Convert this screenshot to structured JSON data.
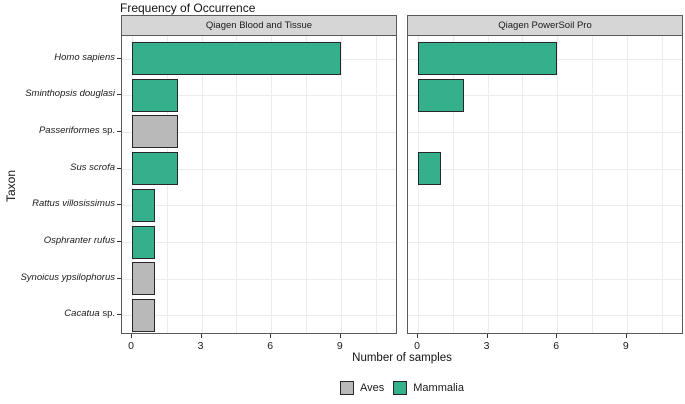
{
  "title": "Frequency of Occurrence",
  "x_axis_title": "Number of samples",
  "y_axis_title": "Taxon",
  "colors": {
    "series": {
      "Aves": "#b9b9b9",
      "Mammalia": "#34b18c"
    },
    "bar_border": "#272727",
    "strip_background": "#d6d6d6",
    "panel_border": "#595959",
    "grid": "#ececec"
  },
  "legend": [
    {
      "label": "Aves"
    },
    {
      "label": "Mammalia"
    }
  ],
  "chart_data": {
    "type": "bar",
    "orientation": "horizontal",
    "title": "Frequency of Occurrence",
    "xlabel": "Number of samples",
    "ylabel": "Taxon",
    "xlim": [
      0,
      11.5
    ],
    "x_ticks": [
      0,
      3,
      6,
      9
    ],
    "grid": true,
    "legend_position": "bottom",
    "categories": [
      {
        "name": "Homo sapiens",
        "suffix": "",
        "group": "Mammalia"
      },
      {
        "name": "Sminthopsis douglasi",
        "suffix": "",
        "group": "Mammalia"
      },
      {
        "name": "Passeriformes",
        "suffix": " sp.",
        "group": "Aves"
      },
      {
        "name": "Sus scrofa",
        "suffix": "",
        "group": "Mammalia"
      },
      {
        "name": "Rattus villosissimus",
        "suffix": "",
        "group": "Mammalia"
      },
      {
        "name": "Osphranter rufus",
        "suffix": "",
        "group": "Mammalia"
      },
      {
        "name": "Synoicus ypsilophorus",
        "suffix": "",
        "group": "Aves"
      },
      {
        "name": "Cacatua",
        "suffix": " sp.",
        "group": "Aves"
      }
    ],
    "facets": [
      {
        "label": "Qiagen Blood and Tissue",
        "values": [
          9,
          2,
          2,
          2,
          1,
          1,
          1,
          1
        ]
      },
      {
        "label": "Qiagen PowerSoil Pro",
        "values": [
          6,
          2,
          0,
          1,
          0,
          0,
          0,
          0
        ]
      }
    ]
  }
}
